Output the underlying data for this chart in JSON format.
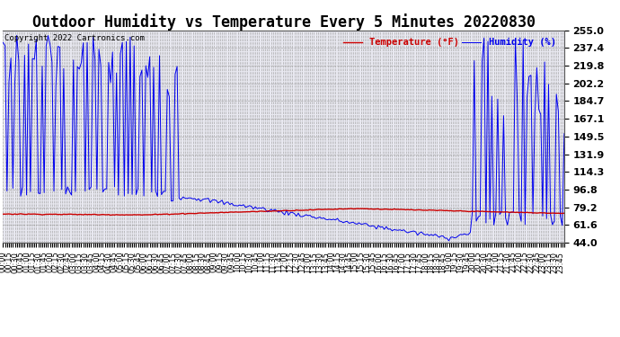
{
  "title": "Outdoor Humidity vs Temperature Every 5 Minutes 20220830",
  "copyright": "Copyright 2022 Cartronics.com",
  "legend_temp": "Temperature (°F)",
  "legend_hum": "Humidity (%)",
  "yticks": [
    44.0,
    61.6,
    79.2,
    96.8,
    114.3,
    131.9,
    149.5,
    167.1,
    184.7,
    202.2,
    219.8,
    237.4,
    255.0
  ],
  "ymin": 44.0,
  "ymax": 255.0,
  "temp_color": "#cc0000",
  "humidity_color": "#0000ee",
  "background_color": "#ffffff",
  "plot_bg_color": "#e8e8f0",
  "title_fontsize": 12,
  "grid_color": "#999999",
  "xtick_fontsize": 6,
  "ytick_fontsize": 8,
  "copyright_color": "#000000"
}
